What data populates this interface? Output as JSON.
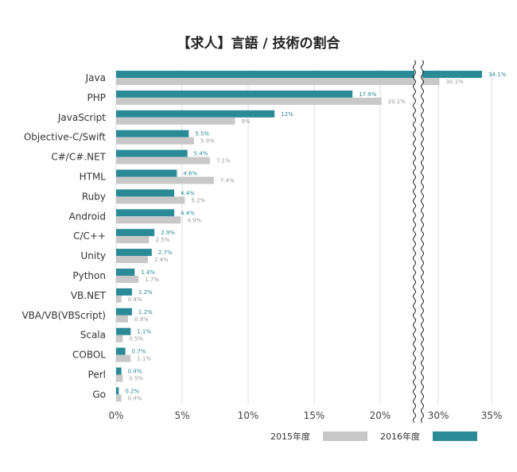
{
  "chart_data": {
    "type": "bar",
    "orientation": "horizontal",
    "title": "【求人】言語 / 技術の割合",
    "categories": [
      "Java",
      "PHP",
      "JavaScript",
      "Objective-C/Swift",
      "C#/C#.NET",
      "HTML",
      "Ruby",
      "Android",
      "C/C++",
      "Unity",
      "Python",
      "VB.NET",
      "VBA/VB(VBScript)",
      "Scala",
      "COBOL",
      "Perl",
      "Go"
    ],
    "series": [
      {
        "name": "2016年度",
        "color": "#2a8a96",
        "values": [
          34.1,
          17.9,
          12,
          5.5,
          5.4,
          4.6,
          4.4,
          4.4,
          2.9,
          2.7,
          1.4,
          1.2,
          1.2,
          1.1,
          0.7,
          0.4,
          0.2
        ],
        "labels": [
          "34.1%",
          "17.9%",
          "12%",
          "5.5%",
          "5.4%",
          "4.6%",
          "4.4%",
          "4.4%",
          "2.9%",
          "2.7%",
          "1.4%",
          "1.2%",
          "1.2%",
          "1.1%",
          "0.7%",
          "0.4%",
          "0.2%"
        ]
      },
      {
        "name": "2015年度",
        "color": "#c8c8c8",
        "values": [
          30.1,
          20.1,
          9,
          5.9,
          7.1,
          7.4,
          5.2,
          4.9,
          2.5,
          2.4,
          1.7,
          0.4,
          0.9,
          0.5,
          1.1,
          0.5,
          0.4
        ],
        "labels": [
          "30.1%",
          "20.1%",
          "9%",
          "5.9%",
          "7.1%",
          "7.4%",
          "5.2%",
          "4.9%",
          "2.5%",
          "2.4%",
          "1.7%",
          "0.4%",
          "0.9%",
          "0.5%",
          "1.1%",
          "0.5%",
          "0.4%"
        ]
      }
    ],
    "x_ticks": [
      "0%",
      "5%",
      "10%",
      "15%",
      "20%",
      "30%",
      "35%"
    ],
    "x_tick_values": [
      0,
      5,
      10,
      15,
      20,
      30,
      35
    ],
    "axis_break": {
      "from": 22.5,
      "to": 28.5
    },
    "xlim": [
      0,
      35
    ],
    "legend_position": "bottom-right",
    "legend": [
      {
        "label": "2015年度",
        "color": "#c8c8c8"
      },
      {
        "label": "2016年度",
        "color": "#2a8a96"
      }
    ],
    "grid": "vertical"
  }
}
